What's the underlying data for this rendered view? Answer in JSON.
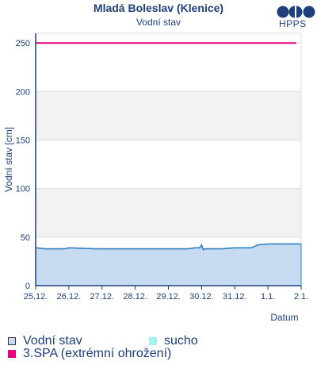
{
  "chart_data": {
    "type": "line",
    "title": "Mladá Boleslav (Klenice)",
    "subtitle": "Vodní stav",
    "ylabel": "Vodní stav [cm]",
    "xlabel": "Datum",
    "ylim": [
      0,
      260
    ],
    "yticks": [
      0,
      50,
      100,
      150,
      200,
      250
    ],
    "xlim": [
      0,
      8
    ],
    "xticks": [
      "25.12.",
      "26.12.",
      "27.12.",
      "28.12.",
      "29.12.",
      "30.12.",
      "31.12.",
      "1.1.",
      "2.1."
    ],
    "bands": [
      {
        "from": 50,
        "to": 100,
        "color": "#f2f2f2"
      },
      {
        "from": 150,
        "to": 200,
        "color": "#f2f2f2"
      }
    ],
    "series": [
      {
        "name": "Vodní stav",
        "color": "#2f7fc1",
        "fill": "#c6dbf1",
        "x": [
          0,
          0.3,
          0.9,
          1.0,
          1.8,
          2.5,
          3.5,
          4.6,
          4.8,
          4.95,
          5.0,
          5.05,
          5.1,
          5.6,
          6.0,
          6.5,
          6.7,
          7.0,
          7.5,
          7.85,
          8.0
        ],
        "y": [
          39,
          38,
          38,
          39,
          38,
          38,
          38,
          38,
          39,
          39,
          42,
          37,
          38,
          38,
          39,
          39,
          42,
          43,
          43,
          43,
          43
        ]
      },
      {
        "name": "3.SPA (extrémní ohrožení)",
        "color": "#e6007e",
        "x": [
          0,
          7.85
        ],
        "y": [
          250,
          250
        ]
      }
    ],
    "legend": [
      {
        "label": "Vodní stav",
        "color": "#c6dbf1",
        "border": "#333333"
      },
      {
        "label": "sucho",
        "color": "#a9f0f0",
        "border": "#a9f0f0"
      },
      {
        "label": "3.SPA (extrémní ohrožení)",
        "color": "#e6007e",
        "border": "#e6007e"
      }
    ],
    "logo_text": "HPPS"
  }
}
